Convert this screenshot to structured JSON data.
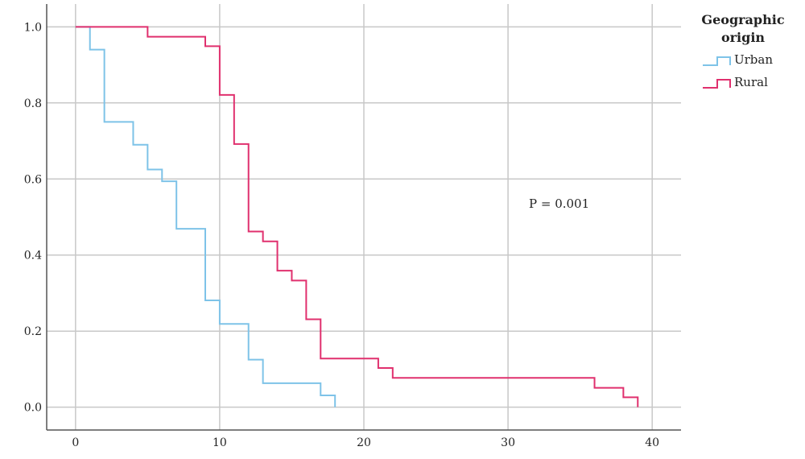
{
  "chart_data": {
    "type": "line",
    "step": true,
    "xlim": [
      -2,
      42
    ],
    "ylim": [
      -0.06,
      1.06
    ],
    "x_ticks": [
      0,
      10,
      20,
      30,
      40
    ],
    "y_ticks": [
      0.0,
      0.2,
      0.4,
      0.6,
      0.8,
      1.0
    ],
    "x_tick_labels": [
      "0",
      "10",
      "20",
      "30",
      "40"
    ],
    "y_tick_labels": [
      "0.0",
      "0.2",
      "0.4",
      "0.6",
      "0.8",
      "1.0"
    ],
    "grid": true,
    "legend_position": "top-right outside",
    "legend_title_lines": [
      "Geographic",
      "origin"
    ],
    "annotation": "P = 0.001",
    "series": [
      {
        "name": "Urban",
        "color": "#7ec3e8",
        "x": [
          0,
          1,
          2,
          4,
          5,
          6,
          7,
          9,
          10,
          12,
          13,
          17,
          18
        ],
        "y": [
          1.0,
          0.94,
          0.75,
          0.69,
          0.625,
          0.594,
          0.469,
          0.281,
          0.219,
          0.125,
          0.063,
          0.031,
          0.0
        ]
      },
      {
        "name": "Rural",
        "color": "#e0306e",
        "x": [
          0,
          5,
          9,
          10,
          11,
          12,
          13,
          14,
          15,
          16,
          17,
          21,
          22,
          36,
          38,
          39
        ],
        "y": [
          1.0,
          0.974,
          0.949,
          0.821,
          0.692,
          0.462,
          0.436,
          0.359,
          0.333,
          0.231,
          0.128,
          0.103,
          0.077,
          0.051,
          0.026,
          0.0
        ]
      }
    ]
  }
}
